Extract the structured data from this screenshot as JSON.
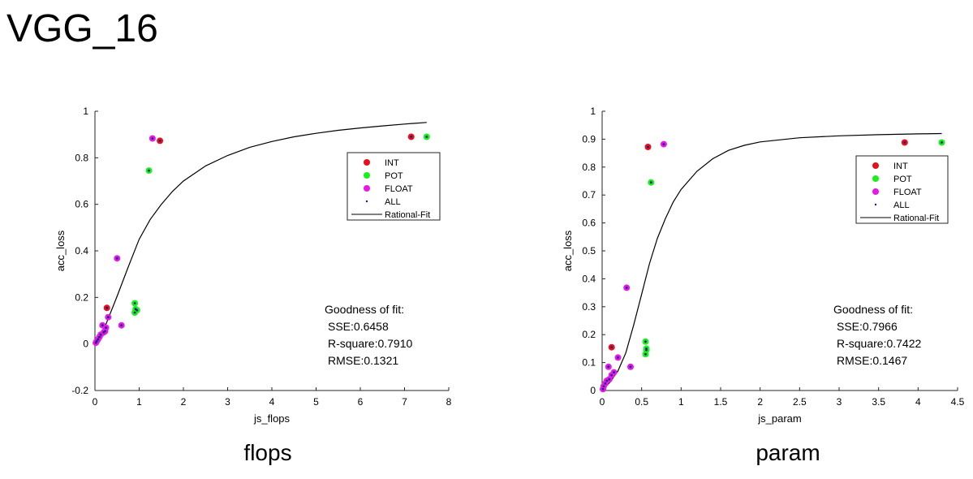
{
  "page": {
    "title": "VGG_16"
  },
  "captions": [
    "flops",
    "param"
  ],
  "chart_data": [
    {
      "type": "scatter",
      "xlabel": "js_flops",
      "ylabel": "acc_loss",
      "xlim": [
        0,
        8
      ],
      "ylim": [
        -0.2,
        1
      ],
      "xticks": [
        "0",
        "1",
        "2",
        "3",
        "4",
        "5",
        "6",
        "7",
        "8"
      ],
      "yticks": [
        "-0.2",
        "0",
        "0.2",
        "0.4",
        "0.6",
        "0.8",
        "1"
      ],
      "legend": {
        "placement": "upper-right",
        "entries": [
          "INT",
          "POT",
          "FLOAT",
          "ALL",
          "Rational-Fit"
        ]
      },
      "goodness": {
        "title": "Goodness of fit:",
        "sse": "SSE:0.6458",
        "rsquare": "R-square:0.7910",
        "rmse": "RMSE:0.1321"
      },
      "colors": {
        "INT": "#e8101a",
        "POT": "#19f019",
        "FLOAT": "#e619e6",
        "ALL": "#1a1a8c",
        "fit": "#000000"
      },
      "series": [
        {
          "name": "INT",
          "x": [
            0.27,
            1.47,
            7.15
          ],
          "y": [
            0.155,
            0.873,
            0.89
          ]
        },
        {
          "name": "POT",
          "x": [
            0.9,
            0.9,
            0.92,
            0.95,
            1.22,
            7.5
          ],
          "y": [
            0.175,
            0.135,
            0.15,
            0.145,
            0.745,
            0.89
          ]
        },
        {
          "name": "FLOAT",
          "x": [
            0.02,
            0.04,
            0.07,
            0.1,
            0.13,
            0.17,
            0.2,
            0.23,
            0.25,
            0.3,
            0.5,
            0.6,
            1.3
          ],
          "y": [
            0.005,
            0.012,
            0.02,
            0.03,
            0.04,
            0.08,
            0.05,
            0.055,
            0.07,
            0.115,
            0.368,
            0.08,
            0.883
          ]
        },
        {
          "name": "ALL",
          "x": [
            0.02,
            0.04,
            0.07,
            0.1,
            0.13,
            0.17,
            0.2,
            0.23,
            0.25,
            0.27,
            0.3,
            0.5,
            0.6,
            0.9,
            0.9,
            0.92,
            0.95,
            1.22,
            1.3,
            1.47,
            7.15,
            7.5
          ],
          "y": [
            0.005,
            0.012,
            0.02,
            0.03,
            0.04,
            0.08,
            0.05,
            0.055,
            0.07,
            0.155,
            0.115,
            0.368,
            0.08,
            0.175,
            0.135,
            0.15,
            0.145,
            0.745,
            0.883,
            0.873,
            0.89,
            0.89
          ]
        }
      ],
      "fit": {
        "name": "Rational-Fit",
        "x": [
          0,
          0.25,
          0.5,
          0.75,
          1,
          1.25,
          1.5,
          1.75,
          2,
          2.5,
          3,
          3.5,
          4,
          4.5,
          5,
          5.5,
          6,
          6.5,
          7,
          7.5
        ],
        "y": [
          0,
          0.085,
          0.205,
          0.33,
          0.45,
          0.535,
          0.6,
          0.655,
          0.7,
          0.765,
          0.81,
          0.845,
          0.87,
          0.89,
          0.905,
          0.918,
          0.928,
          0.937,
          0.945,
          0.952
        ]
      }
    },
    {
      "type": "scatter",
      "xlabel": "js_param",
      "ylabel": "acc_loss",
      "xlim": [
        0,
        4.5
      ],
      "ylim": [
        0,
        1
      ],
      "xticks": [
        "0",
        "0.5",
        "1",
        "1.5",
        "2",
        "2.5",
        "3",
        "3.5",
        "4",
        "4.5"
      ],
      "yticks": [
        "0",
        "0.1",
        "0.2",
        "0.3",
        "0.4",
        "0.5",
        "0.6",
        "0.7",
        "0.8",
        "0.9",
        "1"
      ],
      "legend": {
        "placement": "upper-right",
        "entries": [
          "INT",
          "POT",
          "FLOAT",
          "ALL",
          "Rational-Fit"
        ]
      },
      "goodness": {
        "title": "Goodness of fit:",
        "sse": "SSE:0.7966",
        "rsquare": "R-square:0.7422",
        "rmse": "RMSE:0.1467"
      },
      "colors": {
        "INT": "#e8101a",
        "POT": "#19f019",
        "FLOAT": "#e619e6",
        "ALL": "#1a1a8c",
        "fit": "#000000"
      },
      "series": [
        {
          "name": "INT",
          "x": [
            0.12,
            0.58,
            3.83
          ],
          "y": [
            0.155,
            0.872,
            0.888
          ]
        },
        {
          "name": "POT",
          "x": [
            0.55,
            0.55,
            0.56,
            0.56,
            0.62,
            4.3
          ],
          "y": [
            0.175,
            0.13,
            0.145,
            0.15,
            0.745,
            0.888
          ]
        },
        {
          "name": "FLOAT",
          "x": [
            0.01,
            0.02,
            0.04,
            0.06,
            0.08,
            0.09,
            0.12,
            0.15,
            0.2,
            0.31,
            0.36,
            0.78
          ],
          "y": [
            0.005,
            0.015,
            0.025,
            0.035,
            0.085,
            0.04,
            0.055,
            0.065,
            0.118,
            0.368,
            0.085,
            0.882
          ]
        },
        {
          "name": "ALL",
          "x": [
            0.01,
            0.02,
            0.04,
            0.06,
            0.08,
            0.09,
            0.12,
            0.12,
            0.15,
            0.2,
            0.31,
            0.36,
            0.55,
            0.55,
            0.56,
            0.56,
            0.58,
            0.62,
            0.78,
            3.83,
            4.3
          ],
          "y": [
            0.005,
            0.015,
            0.025,
            0.035,
            0.085,
            0.04,
            0.055,
            0.155,
            0.065,
            0.118,
            0.368,
            0.085,
            0.175,
            0.13,
            0.145,
            0.15,
            0.872,
            0.745,
            0.882,
            0.888,
            0.888
          ]
        }
      ],
      "fit": {
        "name": "Rational-Fit",
        "x": [
          0,
          0.1,
          0.2,
          0.3,
          0.4,
          0.5,
          0.6,
          0.7,
          0.8,
          0.9,
          1,
          1.2,
          1.4,
          1.6,
          1.8,
          2,
          2.5,
          3,
          3.5,
          4,
          4.3
        ],
        "y": [
          0,
          0.03,
          0.07,
          0.135,
          0.235,
          0.345,
          0.455,
          0.545,
          0.615,
          0.675,
          0.72,
          0.785,
          0.83,
          0.86,
          0.878,
          0.89,
          0.905,
          0.912,
          0.916,
          0.919,
          0.92
        ]
      }
    }
  ]
}
